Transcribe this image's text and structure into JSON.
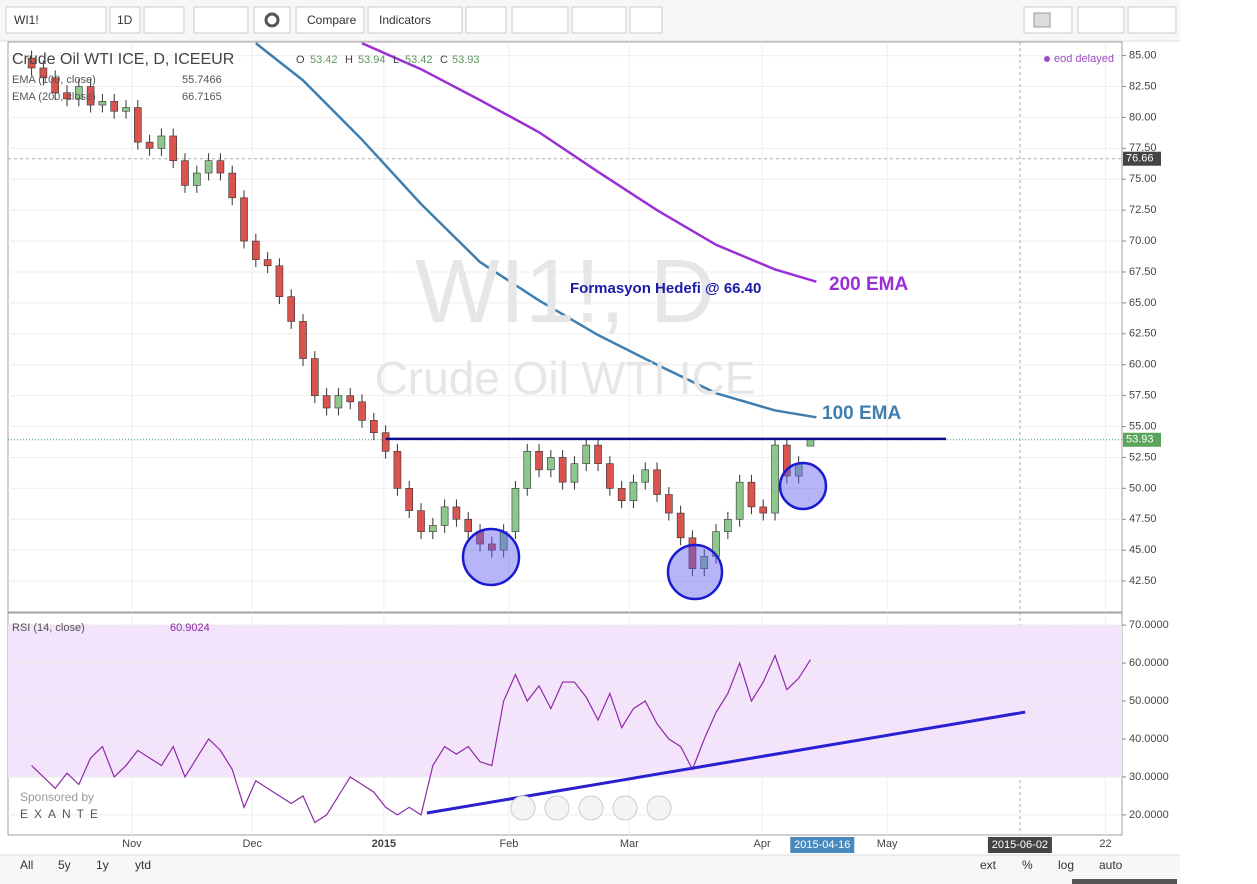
{
  "toolbar": {
    "symbol": "WI1!",
    "interval": "1D",
    "compare": "Compare",
    "indicators": "Indicators"
  },
  "footer": {
    "ranges": [
      "All",
      "5y",
      "1y",
      "ytd"
    ],
    "options": [
      "ext",
      "%",
      "log",
      "auto"
    ]
  },
  "sponsor": {
    "label": "Sponsored by",
    "name": "EXANTE"
  },
  "chart_data": [
    {
      "type": "candlestick",
      "title": "Crude Oil WTI ICE, D, ICEEUR",
      "watermark": [
        "WI1!, D",
        "Crude Oil WTI ICE"
      ],
      "ohlc_labels": [
        "O",
        "H",
        "L",
        "C"
      ],
      "status": "eod delayed",
      "up_color": "#8cc78c",
      "down_color": "#d9534f",
      "x": [
        4,
        6,
        8,
        10,
        12,
        14,
        16,
        18,
        20,
        22,
        24,
        26,
        28,
        30,
        32,
        34,
        36,
        38,
        40,
        42,
        44,
        46,
        48,
        50,
        52,
        54,
        56,
        58,
        60,
        62,
        64,
        66,
        68,
        70,
        72,
        74,
        76,
        78,
        80,
        82,
        84,
        86,
        88,
        90,
        92,
        94,
        96,
        98,
        100,
        102,
        104,
        106,
        108,
        110,
        112,
        114,
        116,
        118,
        120,
        122,
        124,
        126,
        128,
        130,
        132,
        134,
        136
      ],
      "open": [
        84.8,
        84.0,
        83.2,
        82.0,
        81.5,
        82.5,
        81.0,
        81.3,
        80.5,
        80.8,
        78.0,
        77.5,
        78.5,
        76.5,
        74.5,
        75.5,
        76.5,
        75.5,
        73.5,
        70.0,
        68.5,
        68.0,
        65.5,
        63.5,
        60.5,
        57.5,
        56.5,
        57.5,
        57.0,
        55.5,
        54.5,
        53.0,
        50.0,
        48.2,
        46.5,
        47.0,
        48.5,
        47.5,
        46.5,
        45.5,
        45.0,
        46.5,
        50.0,
        53.0,
        51.5,
        52.5,
        50.5,
        52.0,
        53.5,
        52.0,
        50.0,
        49.0,
        50.5,
        51.5,
        49.5,
        48.0,
        46.0,
        43.5,
        44.5,
        46.5,
        47.5,
        50.5,
        48.5,
        48.0,
        53.5,
        51.0,
        53.42
      ],
      "high": [
        85.4,
        84.6,
        83.8,
        82.6,
        83.1,
        83.1,
        81.9,
        81.9,
        81.4,
        81.4,
        78.6,
        79.1,
        79.1,
        77.1,
        76.1,
        77.1,
        77.1,
        76.1,
        74.1,
        70.6,
        69.1,
        68.6,
        66.1,
        64.1,
        61.1,
        58.1,
        58.1,
        58.1,
        57.6,
        56.1,
        55.1,
        53.6,
        50.6,
        48.8,
        47.6,
        49.1,
        49.1,
        48.1,
        47.1,
        46.1,
        47.1,
        50.6,
        53.6,
        53.6,
        53.1,
        53.1,
        52.6,
        54.1,
        54.1,
        52.6,
        50.6,
        51.1,
        52.1,
        52.1,
        50.1,
        48.6,
        46.6,
        45.1,
        47.1,
        48.1,
        51.1,
        51.1,
        49.1,
        54.1,
        54.1,
        52.6,
        53.94
      ],
      "low": [
        83.4,
        82.6,
        81.4,
        80.9,
        80.9,
        80.4,
        80.4,
        79.9,
        79.9,
        77.4,
        76.9,
        76.9,
        75.9,
        73.9,
        73.9,
        74.9,
        74.9,
        72.9,
        69.4,
        67.9,
        67.4,
        64.9,
        62.9,
        59.9,
        56.9,
        55.9,
        55.9,
        56.4,
        54.9,
        53.9,
        52.4,
        49.4,
        47.6,
        45.9,
        45.9,
        46.4,
        46.9,
        45.9,
        44.9,
        44.4,
        44.4,
        45.9,
        49.4,
        50.9,
        50.9,
        49.9,
        49.9,
        51.4,
        51.4,
        49.4,
        48.4,
        48.4,
        49.9,
        48.9,
        47.4,
        45.4,
        42.9,
        42.9,
        43.9,
        45.9,
        46.9,
        47.9,
        47.4,
        47.4,
        50.4,
        50.4,
        53.42
      ],
      "close": [
        84.0,
        83.2,
        82.0,
        81.5,
        82.5,
        81.0,
        81.3,
        80.5,
        80.8,
        78.0,
        77.5,
        78.5,
        76.5,
        74.5,
        75.5,
        76.5,
        75.5,
        73.5,
        70.0,
        68.5,
        68.0,
        65.5,
        63.5,
        60.5,
        57.5,
        56.5,
        57.5,
        57.0,
        55.5,
        54.5,
        53.0,
        50.0,
        48.2,
        46.5,
        47.0,
        48.5,
        47.5,
        46.5,
        45.5,
        45.0,
        46.5,
        50.0,
        53.0,
        51.5,
        52.5,
        50.5,
        52.0,
        53.5,
        52.0,
        50.0,
        49.0,
        50.5,
        51.5,
        49.5,
        48.0,
        46.0,
        43.5,
        44.5,
        46.5,
        47.5,
        50.5,
        48.5,
        48.0,
        53.5,
        51.0,
        52.0,
        53.93
      ],
      "series": [
        {
          "name": "EMA (100, close)",
          "color": "#3f7fb0",
          "x": [
            42,
            50,
            60,
            70,
            80,
            90,
            100,
            110,
            120,
            130,
            137
          ],
          "values": [
            86.0,
            83.0,
            78.2,
            73.0,
            68.3,
            65.2,
            62.4,
            60.0,
            57.7,
            56.3,
            55.7466
          ]
        },
        {
          "name": "EMA (200, close)",
          "color": "#9b2fd6",
          "x": [
            60,
            70,
            80,
            90,
            100,
            110,
            120,
            130,
            137
          ],
          "values": [
            86.0,
            83.9,
            81.4,
            78.8,
            75.6,
            72.5,
            69.7,
            67.7,
            66.7165
          ]
        }
      ],
      "neckline": {
        "value": 54.0,
        "x": [
          64,
          159
        ],
        "color": "#10108f"
      },
      "annotations": [
        "Formasyon Hedefi @ 66.40",
        "200 EMA",
        "100 EMA"
      ],
      "crosshair_price": 76.66,
      "xlim": [
        0,
        188.8
      ],
      "ylim": [
        40,
        86.1
      ],
      "xticks": [
        {
          "value": 21,
          "label": "Nov"
        },
        {
          "value": 41.4,
          "label": "Dec"
        },
        {
          "value": 63.7,
          "label": "2015"
        },
        {
          "value": 84.9,
          "label": "Feb"
        },
        {
          "value": 105.3,
          "label": "Mar"
        },
        {
          "value": 127.8,
          "label": "Apr"
        },
        {
          "value": 149,
          "label": "May"
        },
        {
          "value": 186,
          "label": "22"
        }
      ],
      "x_markers": [
        {
          "value": 138,
          "label": "2015-04-16"
        },
        {
          "value": 171.5,
          "label": "2015-06-02"
        }
      ],
      "yticks": [
        {
          "value": 42.5,
          "label": "42.50"
        },
        {
          "value": 45,
          "label": "45.00"
        },
        {
          "value": 47.5,
          "label": "47.50"
        },
        {
          "value": 50,
          "label": "50.00"
        },
        {
          "value": 52.5,
          "label": "52.50"
        },
        {
          "value": 55,
          "label": "55.00"
        },
        {
          "value": 57.5,
          "label": "57.50"
        },
        {
          "value": 60,
          "label": "60.00"
        },
        {
          "value": 62.5,
          "label": "62.50"
        },
        {
          "value": 65,
          "label": "65.00"
        },
        {
          "value": 67.5,
          "label": "67.50"
        },
        {
          "value": 70,
          "label": "70.00"
        },
        {
          "value": 72.5,
          "label": "72.50"
        },
        {
          "value": 75,
          "label": "75.00"
        },
        {
          "value": 77.5,
          "label": "77.50"
        },
        {
          "value": 80,
          "label": "80.00"
        },
        {
          "value": 82.5,
          "label": "82.50"
        },
        {
          "value": 85,
          "label": "85.00"
        }
      ],
      "grid": true
    },
    {
      "type": "line",
      "title": "RSI (14, close)",
      "band": [
        30,
        70
      ],
      "band_color": "#f3e4fb",
      "series": [
        {
          "name": "RSI",
          "color": "#8e2aa8",
          "x": [
            4,
            6,
            8,
            10,
            12,
            14,
            16,
            18,
            20,
            22,
            24,
            26,
            28,
            30,
            32,
            34,
            36,
            38,
            40,
            42,
            44,
            46,
            48,
            50,
            52,
            54,
            56,
            58,
            60,
            62,
            64,
            66,
            68,
            70,
            72,
            74,
            76,
            78,
            80,
            82,
            84,
            86,
            88,
            90,
            92,
            94,
            96,
            98,
            100,
            102,
            104,
            106,
            108,
            110,
            112,
            114,
            116,
            118,
            120,
            122,
            124,
            126,
            128,
            130,
            132,
            134,
            136
          ],
          "values": [
            33,
            30,
            27,
            31,
            28,
            35,
            38,
            30,
            33,
            37,
            35,
            33,
            38,
            30,
            35,
            40,
            37,
            32,
            22,
            29,
            27,
            25,
            23,
            25,
            18,
            20,
            25,
            30,
            28,
            26,
            22,
            20,
            22,
            20,
            33,
            38,
            36,
            38,
            34,
            33,
            50,
            57,
            50,
            54,
            48,
            55,
            55,
            51,
            45,
            52,
            43,
            48,
            50,
            44,
            40,
            38,
            32,
            40,
            47,
            52,
            60,
            50,
            55,
            62,
            53,
            56,
            60.9024
          ]
        }
      ],
      "trendline": {
        "x": [
          71,
          172.4
        ],
        "values": [
          20.5,
          47.1
        ],
        "color": "#2a1fd1"
      },
      "xlim": [
        0,
        188.8
      ],
      "ylim": [
        14.7,
        73.2
      ],
      "yticks": [
        {
          "value": 20,
          "label": "20.0000"
        },
        {
          "value": 30,
          "label": "30.0000"
        },
        {
          "value": 40,
          "label": "40.0000"
        },
        {
          "value": 50,
          "label": "50.0000"
        },
        {
          "value": 60,
          "label": "60.0000"
        },
        {
          "value": 70,
          "label": "70.0000"
        }
      ],
      "grid": true
    }
  ]
}
